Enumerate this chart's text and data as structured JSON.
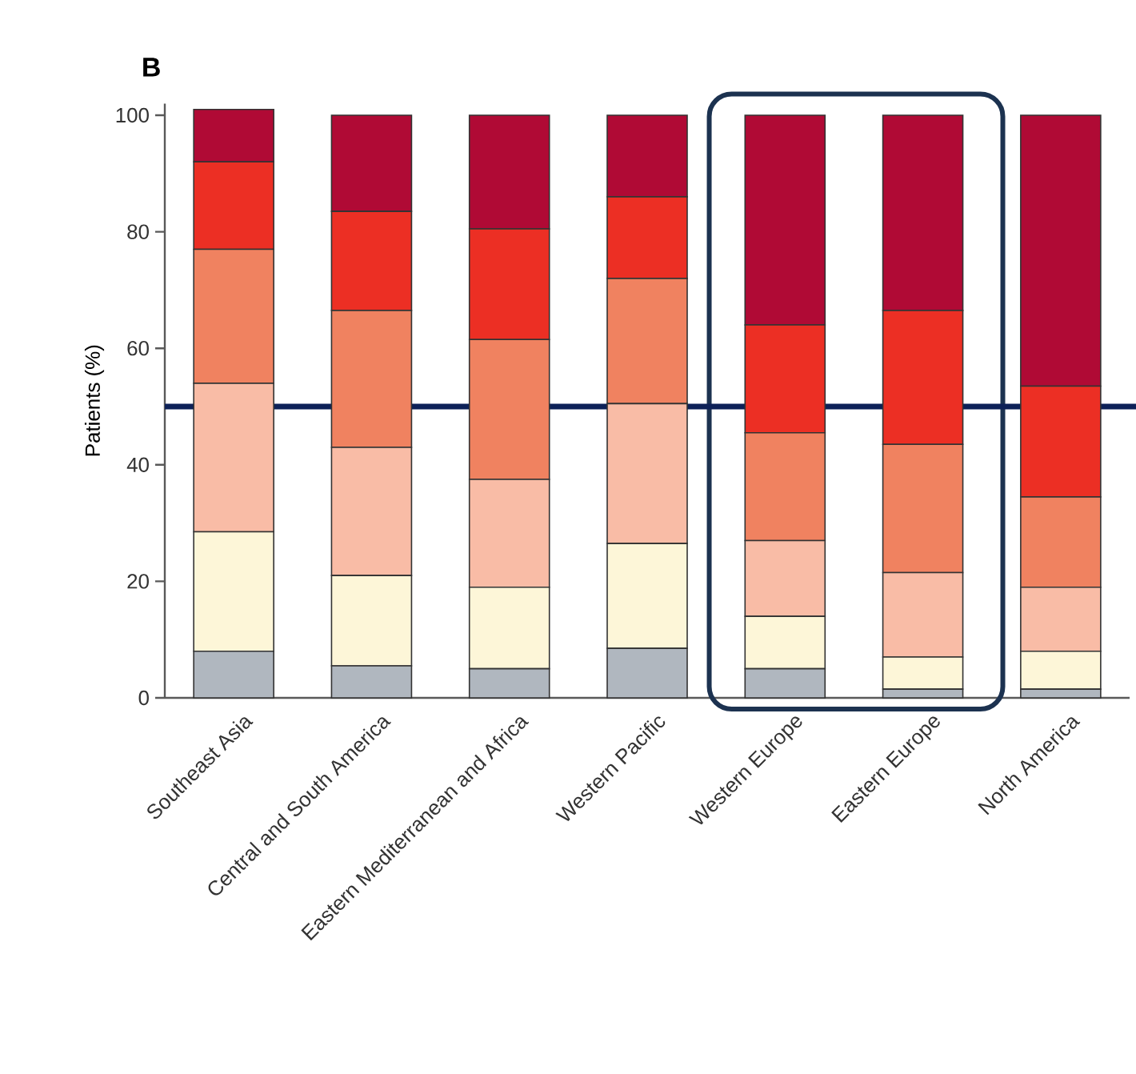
{
  "chart_data": {
    "type": "bar",
    "stacked": true,
    "title": "B",
    "ylabel": "Patients (%)",
    "categories": [
      "Southeast Asia",
      "Central and South America",
      "Eastern Mediterranean and Africa",
      "Western Pacific",
      "Western Europe",
      "Eastern Europe",
      "North America"
    ],
    "series": [
      {
        "color": "#b0b7bf",
        "values": [
          8,
          5.5,
          5,
          8.5,
          5,
          1.5,
          1.5
        ]
      },
      {
        "color": "#fdf6d8",
        "values": [
          20.5,
          15.5,
          14,
          18,
          9,
          5.5,
          6.5
        ]
      },
      {
        "color": "#f9bca6",
        "values": [
          25.5,
          22,
          18.5,
          24,
          13,
          14.5,
          11
        ]
      },
      {
        "color": "#f08260",
        "values": [
          23,
          23.5,
          24,
          21.5,
          18.5,
          22,
          15.5
        ]
      },
      {
        "color": "#ec2f24",
        "values": [
          15,
          17,
          19,
          14,
          18.5,
          23,
          19
        ]
      },
      {
        "color": "#b00a35",
        "values": [
          9,
          16.5,
          19.5,
          14,
          36,
          33.5,
          46.5
        ]
      }
    ],
    "ylim": [
      0,
      102
    ],
    "yticks": [
      0,
      20,
      40,
      60,
      80,
      100
    ],
    "ref_lines": [
      {
        "axis": "y",
        "value": 50,
        "color": "#0d2158"
      }
    ],
    "grid": false
  }
}
